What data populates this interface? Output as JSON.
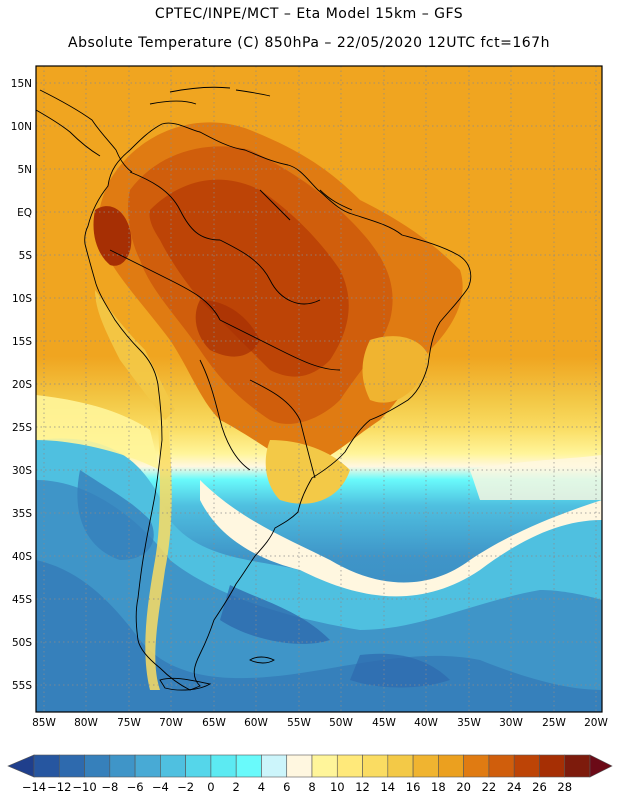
{
  "header": {
    "line1": "CPTEC/INPE/MCT –  Eta Model 15km – GFS",
    "line2": "Absolute Temperature (C) 850hPa – 22/05/2020 12UTC fct=167h"
  },
  "map": {
    "lat_labels": [
      "15N",
      "10N",
      "5N",
      "EQ",
      "5S",
      "10S",
      "15S",
      "20S",
      "25S",
      "30S",
      "35S",
      "40S",
      "45S",
      "50S",
      "55S"
    ],
    "lon_labels": [
      "85W",
      "80W",
      "75W",
      "70W",
      "65W",
      "60W",
      "55W",
      "50W",
      "45W",
      "40W",
      "35W",
      "30W",
      "25W",
      "20W"
    ]
  },
  "colorbar": {
    "labels": [
      "-14",
      "-12",
      "-10",
      "-8",
      "-6",
      "-4",
      "-2",
      "0",
      "2",
      "4",
      "6",
      "8",
      "10",
      "12",
      "14",
      "16",
      "18",
      "20",
      "22",
      "24",
      "26",
      "28"
    ],
    "colors": [
      "#1f3f8c",
      "#2656a0",
      "#2e6aae",
      "#3680bb",
      "#3f95c8",
      "#48aad5",
      "#4fc0e0",
      "#55d6ea",
      "#5ceaf2",
      "#69fafb",
      "#ccf5fb",
      "#fff7e0",
      "#fff59a",
      "#ffe97a",
      "#fadc62",
      "#f3c947",
      "#f0b430",
      "#eba01f",
      "#e07b12",
      "#d05e0c",
      "#bd4406",
      "#a62f04",
      "#7d1b0c",
      "#6b0a17"
    ]
  },
  "colors": {
    "land_warm": "#c85a0a",
    "land_hot": "#a9410c",
    "ocean_north": "#f0a520",
    "ocean_south": "#3d8fc8"
  }
}
